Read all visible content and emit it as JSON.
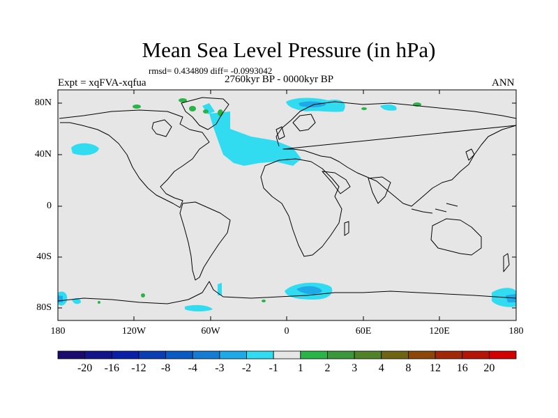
{
  "title": "Mean Sea Level Pressure (in hPa)",
  "stats": "rmsd= 0.434809 diff= -0.0993042",
  "period": "2760kyr BP - 0000kyr BP",
  "experiment": "Expt = xqFVA-xqfua",
  "season": "ANN",
  "lat_labels": [
    "80N",
    "40N",
    "0",
    "40S",
    "80S"
  ],
  "lon_labels": [
    "180",
    "120W",
    "60W",
    "0",
    "60E",
    "120E",
    "180"
  ],
  "colorbar": {
    "labels": [
      "-20",
      "-16",
      "-12",
      "-8",
      "-4",
      "-3",
      "-2",
      "-1",
      "1",
      "2",
      "3",
      "4",
      "8",
      "12",
      "16",
      "20"
    ],
    "colors": [
      "#1a0a6e",
      "#14148a",
      "#0a1ea8",
      "#0a3cb4",
      "#0a5ac4",
      "#147cd2",
      "#1eaae6",
      "#32dcf0",
      "#e6e6e6",
      "#28b446",
      "#3c963c",
      "#508228",
      "#6e6414",
      "#8c460a",
      "#a02808",
      "#b41406",
      "#d20000"
    ]
  },
  "colors": {
    "ocean": "#e6e6e6",
    "negative_anomaly": "#32dcf0",
    "negative_strong": "#1eaae6",
    "positive_anomaly": "#28b446"
  }
}
